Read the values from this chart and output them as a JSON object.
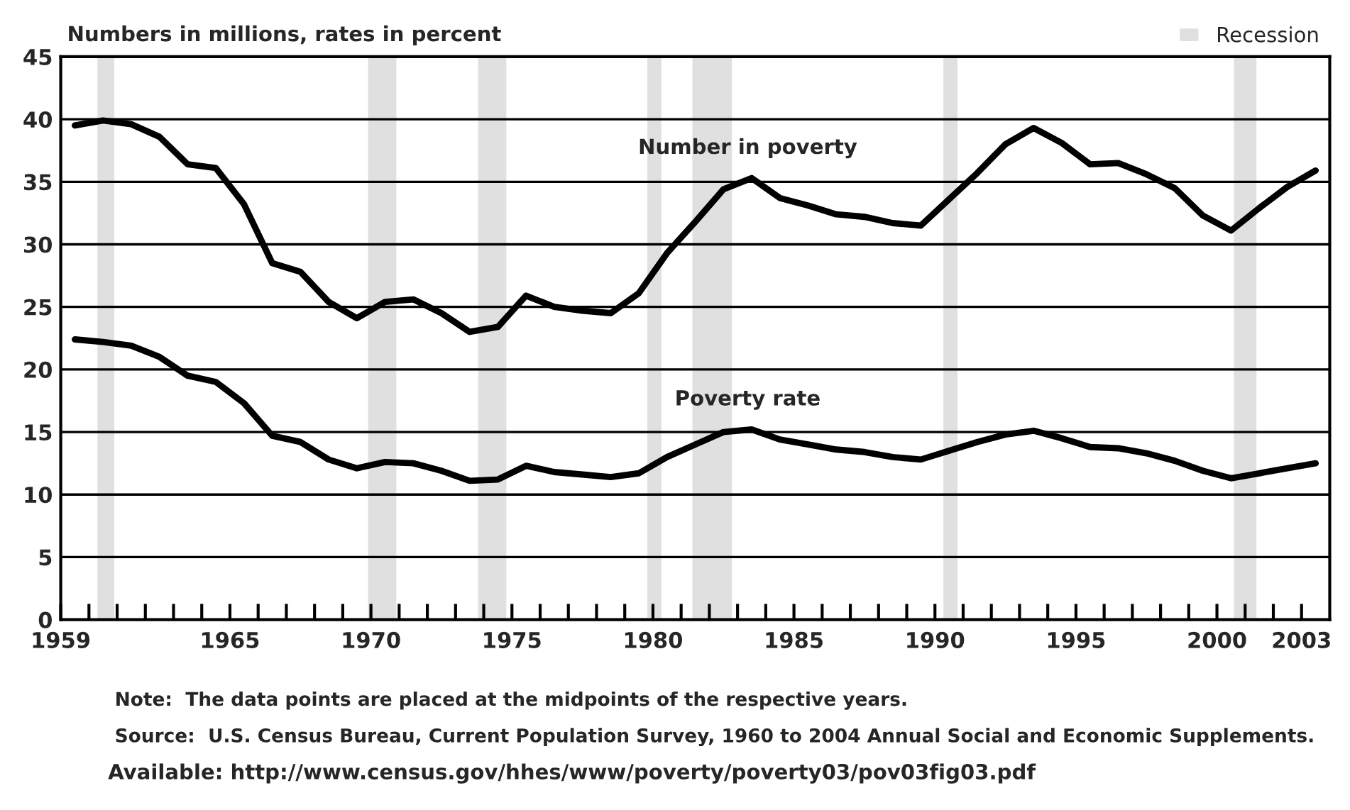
{
  "chart_data": {
    "type": "line",
    "ylabel": "Numbers in millions, rates in percent",
    "x": [
      1959.5,
      1960.5,
      1961.5,
      1962.5,
      1963.5,
      1964.5,
      1965.5,
      1966.5,
      1967.5,
      1968.5,
      1969.5,
      1970.5,
      1971.5,
      1972.5,
      1973.5,
      1974.5,
      1975.5,
      1976.5,
      1977.5,
      1978.5,
      1979.5,
      1980.5,
      1981.5,
      1982.5,
      1983.5,
      1984.5,
      1985.5,
      1986.5,
      1987.5,
      1988.5,
      1989.5,
      1990.5,
      1991.5,
      1992.5,
      1993.5,
      1994.5,
      1995.5,
      1996.5,
      1997.5,
      1998.5,
      1999.5,
      2000.5,
      2001.5,
      2002.5,
      2003.5
    ],
    "series": [
      {
        "name": "Number in poverty",
        "color": "#000000",
        "values": [
          39.5,
          39.9,
          39.6,
          38.6,
          36.4,
          36.1,
          33.2,
          28.5,
          27.8,
          25.4,
          24.1,
          25.4,
          25.6,
          24.5,
          23.0,
          23.4,
          25.9,
          25.0,
          24.7,
          24.5,
          26.1,
          29.3,
          31.8,
          34.4,
          35.3,
          33.7,
          33.1,
          32.4,
          32.2,
          31.7,
          31.5,
          33.6,
          35.7,
          38.0,
          39.3,
          38.1,
          36.4,
          36.5,
          35.6,
          34.5,
          32.3,
          31.1,
          32.9,
          34.6,
          35.9
        ]
      },
      {
        "name": "Poverty rate",
        "color": "#000000",
        "values": [
          22.4,
          22.2,
          21.9,
          21.0,
          19.5,
          19.0,
          17.3,
          14.7,
          14.2,
          12.8,
          12.1,
          12.6,
          12.5,
          11.9,
          11.1,
          11.2,
          12.3,
          11.8,
          11.6,
          11.4,
          11.7,
          13.0,
          14.0,
          15.0,
          15.2,
          14.4,
          14.0,
          13.6,
          13.4,
          13.0,
          12.8,
          13.5,
          14.2,
          14.8,
          15.1,
          14.5,
          13.8,
          13.7,
          13.3,
          12.7,
          11.9,
          11.3,
          11.7,
          12.1,
          12.5
        ]
      }
    ],
    "xlim": [
      1959,
      2004
    ],
    "xticks": [
      {
        "value": 1959,
        "label": "1959"
      },
      {
        "value": 1960,
        "label": null
      },
      {
        "value": 1961,
        "label": null
      },
      {
        "value": 1962,
        "label": null
      },
      {
        "value": 1963,
        "label": null
      },
      {
        "value": 1964,
        "label": null
      },
      {
        "value": 1965,
        "label": "1965"
      },
      {
        "value": 1966,
        "label": null
      },
      {
        "value": 1967,
        "label": null
      },
      {
        "value": 1968,
        "label": null
      },
      {
        "value": 1969,
        "label": null
      },
      {
        "value": 1970,
        "label": "1970"
      },
      {
        "value": 1971,
        "label": null
      },
      {
        "value": 1972,
        "label": null
      },
      {
        "value": 1973,
        "label": null
      },
      {
        "value": 1974,
        "label": null
      },
      {
        "value": 1975,
        "label": "1975"
      },
      {
        "value": 1976,
        "label": null
      },
      {
        "value": 1977,
        "label": null
      },
      {
        "value": 1978,
        "label": null
      },
      {
        "value": 1979,
        "label": null
      },
      {
        "value": 1980,
        "label": "1980"
      },
      {
        "value": 1981,
        "label": null
      },
      {
        "value": 1982,
        "label": null
      },
      {
        "value": 1983,
        "label": null
      },
      {
        "value": 1984,
        "label": null
      },
      {
        "value": 1985,
        "label": "1985"
      },
      {
        "value": 1986,
        "label": null
      },
      {
        "value": 1987,
        "label": null
      },
      {
        "value": 1988,
        "label": null
      },
      {
        "value": 1989,
        "label": null
      },
      {
        "value": 1990,
        "label": "1990"
      },
      {
        "value": 1991,
        "label": null
      },
      {
        "value": 1992,
        "label": null
      },
      {
        "value": 1993,
        "label": null
      },
      {
        "value": 1994,
        "label": null
      },
      {
        "value": 1995,
        "label": "1995"
      },
      {
        "value": 1996,
        "label": null
      },
      {
        "value": 1997,
        "label": null
      },
      {
        "value": 1998,
        "label": null
      },
      {
        "value": 1999,
        "label": null
      },
      {
        "value": 2000,
        "label": "2000"
      },
      {
        "value": 2001,
        "label": null
      },
      {
        "value": 2002,
        "label": null
      },
      {
        "value": 2003,
        "label": "2003"
      }
    ],
    "ylim": [
      0,
      45
    ],
    "yticks": [
      0,
      5,
      10,
      15,
      20,
      25,
      30,
      35,
      40,
      45
    ],
    "grid": "y",
    "legend": "top right",
    "bands": [
      {
        "axis": "x",
        "from": 1960.3,
        "to": 1960.9,
        "label": "Recession",
        "color": "#cccccc"
      },
      {
        "axis": "x",
        "from": 1969.9,
        "to": 1970.9,
        "color": "#cccccc"
      },
      {
        "axis": "x",
        "from": 1973.8,
        "to": 1974.8,
        "color": "#cccccc"
      },
      {
        "axis": "x",
        "from": 1979.8,
        "to": 1980.3,
        "color": "#cccccc"
      },
      {
        "axis": "x",
        "from": 1981.4,
        "to": 1982.8,
        "color": "#cccccc"
      },
      {
        "axis": "x",
        "from": 1990.3,
        "to": 1990.8,
        "color": "#cccccc"
      },
      {
        "axis": "x",
        "from": 2000.6,
        "to": 2001.4,
        "color": "#cccccc"
      }
    ],
    "annotations": [
      "Note:  The data points are placed at the midpoints of the respective years.",
      "Source:  U.S. Census Bureau, Current Population Survey, 1960 to 2004 Annual Social and Economic Supplements.",
      "Available: http://www.census.gov/hhes/www/poverty/poverty03/pov03fig03.pdf"
    ]
  }
}
